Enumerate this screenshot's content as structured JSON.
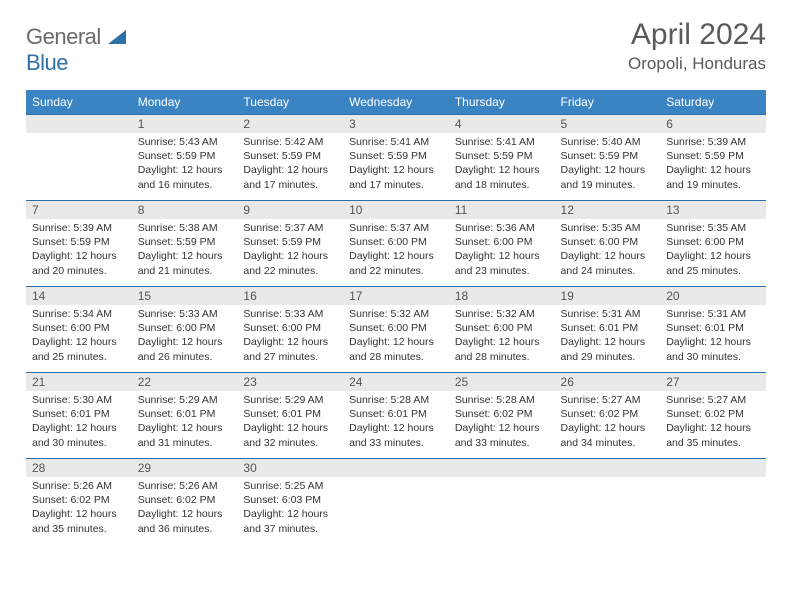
{
  "brand": {
    "general": "General",
    "blue": "Blue"
  },
  "title": "April 2024",
  "location": "Oropoli, Honduras",
  "colors": {
    "header_bg": "#3b84c4",
    "header_text": "#ffffff",
    "daynum_bg": "#e9e9e9",
    "rule": "#2f6fa8",
    "text": "#333333",
    "title_text": "#5a5a5a"
  },
  "day_headers": [
    "Sunday",
    "Monday",
    "Tuesday",
    "Wednesday",
    "Thursday",
    "Friday",
    "Saturday"
  ],
  "weeks": [
    [
      {
        "n": "",
        "sr": "",
        "ss": "",
        "dl": ""
      },
      {
        "n": "1",
        "sr": "Sunrise: 5:43 AM",
        "ss": "Sunset: 5:59 PM",
        "dl": "Daylight: 12 hours and 16 minutes."
      },
      {
        "n": "2",
        "sr": "Sunrise: 5:42 AM",
        "ss": "Sunset: 5:59 PM",
        "dl": "Daylight: 12 hours and 17 minutes."
      },
      {
        "n": "3",
        "sr": "Sunrise: 5:41 AM",
        "ss": "Sunset: 5:59 PM",
        "dl": "Daylight: 12 hours and 17 minutes."
      },
      {
        "n": "4",
        "sr": "Sunrise: 5:41 AM",
        "ss": "Sunset: 5:59 PM",
        "dl": "Daylight: 12 hours and 18 minutes."
      },
      {
        "n": "5",
        "sr": "Sunrise: 5:40 AM",
        "ss": "Sunset: 5:59 PM",
        "dl": "Daylight: 12 hours and 19 minutes."
      },
      {
        "n": "6",
        "sr": "Sunrise: 5:39 AM",
        "ss": "Sunset: 5:59 PM",
        "dl": "Daylight: 12 hours and 19 minutes."
      }
    ],
    [
      {
        "n": "7",
        "sr": "Sunrise: 5:39 AM",
        "ss": "Sunset: 5:59 PM",
        "dl": "Daylight: 12 hours and 20 minutes."
      },
      {
        "n": "8",
        "sr": "Sunrise: 5:38 AM",
        "ss": "Sunset: 5:59 PM",
        "dl": "Daylight: 12 hours and 21 minutes."
      },
      {
        "n": "9",
        "sr": "Sunrise: 5:37 AM",
        "ss": "Sunset: 5:59 PM",
        "dl": "Daylight: 12 hours and 22 minutes."
      },
      {
        "n": "10",
        "sr": "Sunrise: 5:37 AM",
        "ss": "Sunset: 6:00 PM",
        "dl": "Daylight: 12 hours and 22 minutes."
      },
      {
        "n": "11",
        "sr": "Sunrise: 5:36 AM",
        "ss": "Sunset: 6:00 PM",
        "dl": "Daylight: 12 hours and 23 minutes."
      },
      {
        "n": "12",
        "sr": "Sunrise: 5:35 AM",
        "ss": "Sunset: 6:00 PM",
        "dl": "Daylight: 12 hours and 24 minutes."
      },
      {
        "n": "13",
        "sr": "Sunrise: 5:35 AM",
        "ss": "Sunset: 6:00 PM",
        "dl": "Daylight: 12 hours and 25 minutes."
      }
    ],
    [
      {
        "n": "14",
        "sr": "Sunrise: 5:34 AM",
        "ss": "Sunset: 6:00 PM",
        "dl": "Daylight: 12 hours and 25 minutes."
      },
      {
        "n": "15",
        "sr": "Sunrise: 5:33 AM",
        "ss": "Sunset: 6:00 PM",
        "dl": "Daylight: 12 hours and 26 minutes."
      },
      {
        "n": "16",
        "sr": "Sunrise: 5:33 AM",
        "ss": "Sunset: 6:00 PM",
        "dl": "Daylight: 12 hours and 27 minutes."
      },
      {
        "n": "17",
        "sr": "Sunrise: 5:32 AM",
        "ss": "Sunset: 6:00 PM",
        "dl": "Daylight: 12 hours and 28 minutes."
      },
      {
        "n": "18",
        "sr": "Sunrise: 5:32 AM",
        "ss": "Sunset: 6:00 PM",
        "dl": "Daylight: 12 hours and 28 minutes."
      },
      {
        "n": "19",
        "sr": "Sunrise: 5:31 AM",
        "ss": "Sunset: 6:01 PM",
        "dl": "Daylight: 12 hours and 29 minutes."
      },
      {
        "n": "20",
        "sr": "Sunrise: 5:31 AM",
        "ss": "Sunset: 6:01 PM",
        "dl": "Daylight: 12 hours and 30 minutes."
      }
    ],
    [
      {
        "n": "21",
        "sr": "Sunrise: 5:30 AM",
        "ss": "Sunset: 6:01 PM",
        "dl": "Daylight: 12 hours and 30 minutes."
      },
      {
        "n": "22",
        "sr": "Sunrise: 5:29 AM",
        "ss": "Sunset: 6:01 PM",
        "dl": "Daylight: 12 hours and 31 minutes."
      },
      {
        "n": "23",
        "sr": "Sunrise: 5:29 AM",
        "ss": "Sunset: 6:01 PM",
        "dl": "Daylight: 12 hours and 32 minutes."
      },
      {
        "n": "24",
        "sr": "Sunrise: 5:28 AM",
        "ss": "Sunset: 6:01 PM",
        "dl": "Daylight: 12 hours and 33 minutes."
      },
      {
        "n": "25",
        "sr": "Sunrise: 5:28 AM",
        "ss": "Sunset: 6:02 PM",
        "dl": "Daylight: 12 hours and 33 minutes."
      },
      {
        "n": "26",
        "sr": "Sunrise: 5:27 AM",
        "ss": "Sunset: 6:02 PM",
        "dl": "Daylight: 12 hours and 34 minutes."
      },
      {
        "n": "27",
        "sr": "Sunrise: 5:27 AM",
        "ss": "Sunset: 6:02 PM",
        "dl": "Daylight: 12 hours and 35 minutes."
      }
    ],
    [
      {
        "n": "28",
        "sr": "Sunrise: 5:26 AM",
        "ss": "Sunset: 6:02 PM",
        "dl": "Daylight: 12 hours and 35 minutes."
      },
      {
        "n": "29",
        "sr": "Sunrise: 5:26 AM",
        "ss": "Sunset: 6:02 PM",
        "dl": "Daylight: 12 hours and 36 minutes."
      },
      {
        "n": "30",
        "sr": "Sunrise: 5:25 AM",
        "ss": "Sunset: 6:03 PM",
        "dl": "Daylight: 12 hours and 37 minutes."
      },
      {
        "n": "",
        "sr": "",
        "ss": "",
        "dl": ""
      },
      {
        "n": "",
        "sr": "",
        "ss": "",
        "dl": ""
      },
      {
        "n": "",
        "sr": "",
        "ss": "",
        "dl": ""
      },
      {
        "n": "",
        "sr": "",
        "ss": "",
        "dl": ""
      }
    ]
  ]
}
